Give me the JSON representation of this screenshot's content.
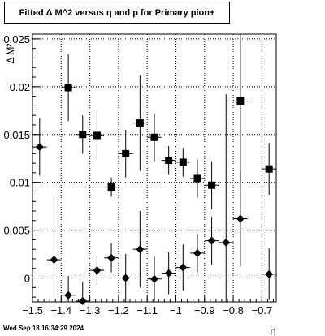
{
  "title": "Fitted Δ M^2 versus η and p for Primary pion+",
  "footer": "Wed Sep 18 16:34:29 2024",
  "chart_data": {
    "type": "scatter",
    "title": "Fitted Δ M^2 versus η and p for Primary pion+",
    "xlabel": "η",
    "ylabel": "Δ M²",
    "xlim": [
      -1.5,
      -0.65
    ],
    "ylim": [
      -0.0025,
      0.0255
    ],
    "x_ticks": [
      -1.5,
      -1.4,
      -1.3,
      -1.2,
      -1.1,
      -1,
      -0.9,
      -0.8,
      -0.7
    ],
    "x_tick_labels": [
      "−1.5",
      "−1.4",
      "−1.3",
      "−1.2",
      "−1.1",
      "−1",
      "−0.9",
      "−0.8",
      "−0.7"
    ],
    "y_ticks": [
      0,
      0.005,
      0.01,
      0.015,
      0.02,
      0.025
    ],
    "y_tick_labels": [
      "0",
      "0.005",
      "0.01",
      "0.015",
      "0.02",
      "0.025"
    ],
    "grid": true,
    "series": [
      {
        "marker": "square",
        "points": [
          {
            "x": -1.375,
            "y": 0.0199,
            "yerr_low": 0.0035,
            "yerr_high": 0.0035
          },
          {
            "x": -1.325,
            "y": 0.015,
            "yerr_low": 0.002,
            "yerr_high": 0.002
          },
          {
            "x": -1.275,
            "y": 0.0149,
            "yerr_low": 0.0025,
            "yerr_high": 0.0025
          },
          {
            "x": -1.225,
            "y": 0.0095,
            "yerr_low": 0.001,
            "yerr_high": 0.001
          },
          {
            "x": -1.175,
            "y": 0.013,
            "yerr_low": 0.0025,
            "yerr_high": 0.0025
          },
          {
            "x": -1.125,
            "y": 0.0162,
            "yerr_low": 0.005,
            "yerr_high": 0.005
          },
          {
            "x": -1.075,
            "y": 0.0147,
            "yerr_low": 0.0025,
            "yerr_high": 0.0025
          },
          {
            "x": -1.025,
            "y": 0.0123,
            "yerr_low": 0.0015,
            "yerr_high": 0.0015
          },
          {
            "x": -0.975,
            "y": 0.0121,
            "yerr_low": 0.0015,
            "yerr_high": 0.0015
          },
          {
            "x": -0.925,
            "y": 0.0104,
            "yerr_low": 0.002,
            "yerr_high": 0.002
          },
          {
            "x": -0.875,
            "y": 0.0097,
            "yerr_low": 0.0025,
            "yerr_high": 0.0025
          },
          {
            "x": -0.775,
            "y": 0.0185,
            "yerr_low": 0.0085,
            "yerr_high": 0.0085
          },
          {
            "x": -0.675,
            "y": 0.0114,
            "yerr_low": 0.0027,
            "yerr_high": 0.0027
          }
        ]
      },
      {
        "marker": "diamond",
        "points": [
          {
            "x": -1.475,
            "y": 0.0137,
            "yerr_low": 0.003,
            "yerr_high": 0.003
          },
          {
            "x": -1.425,
            "y": 0.0019,
            "yerr_low": 0.0065,
            "yerr_high": 0.0065
          },
          {
            "x": -1.375,
            "y": -0.0018,
            "yerr_low": 0.002,
            "yerr_high": 0.002
          },
          {
            "x": -1.325,
            "y": -0.0024,
            "yerr_low": 0.002,
            "yerr_high": 0.002
          },
          {
            "x": -1.275,
            "y": 0.0008,
            "yerr_low": 0.0015,
            "yerr_high": 0.0015
          },
          {
            "x": -1.225,
            "y": 0.0021,
            "yerr_low": 0.0015,
            "yerr_high": 0.0015
          },
          {
            "x": -1.175,
            "y": 0.0,
            "yerr_low": 0.0025,
            "yerr_high": 0.0025
          },
          {
            "x": -1.125,
            "y": 0.003,
            "yerr_low": 0.004,
            "yerr_high": 0.004
          },
          {
            "x": -1.075,
            "y": -0.0001,
            "yerr_low": 0.0023,
            "yerr_high": 0.0023
          },
          {
            "x": -1.025,
            "y": 0.0005,
            "yerr_low": 0.0022,
            "yerr_high": 0.0022
          },
          {
            "x": -0.975,
            "y": 0.0011,
            "yerr_low": 0.0024,
            "yerr_high": 0.0024
          },
          {
            "x": -0.925,
            "y": 0.0026,
            "yerr_low": 0.002,
            "yerr_high": 0.002
          },
          {
            "x": -0.875,
            "y": 0.0039,
            "yerr_low": 0.0025,
            "yerr_high": 0.0025
          },
          {
            "x": -0.825,
            "y": 0.0037,
            "yerr_low": 0.0155,
            "yerr_high": 0.0155
          },
          {
            "x": -0.775,
            "y": 0.0062,
            "yerr_low": 0.005,
            "yerr_high": 0.005
          },
          {
            "x": -0.675,
            "y": 0.0004,
            "yerr_low": 0.0027,
            "yerr_high": 0.0027
          }
        ]
      }
    ]
  }
}
